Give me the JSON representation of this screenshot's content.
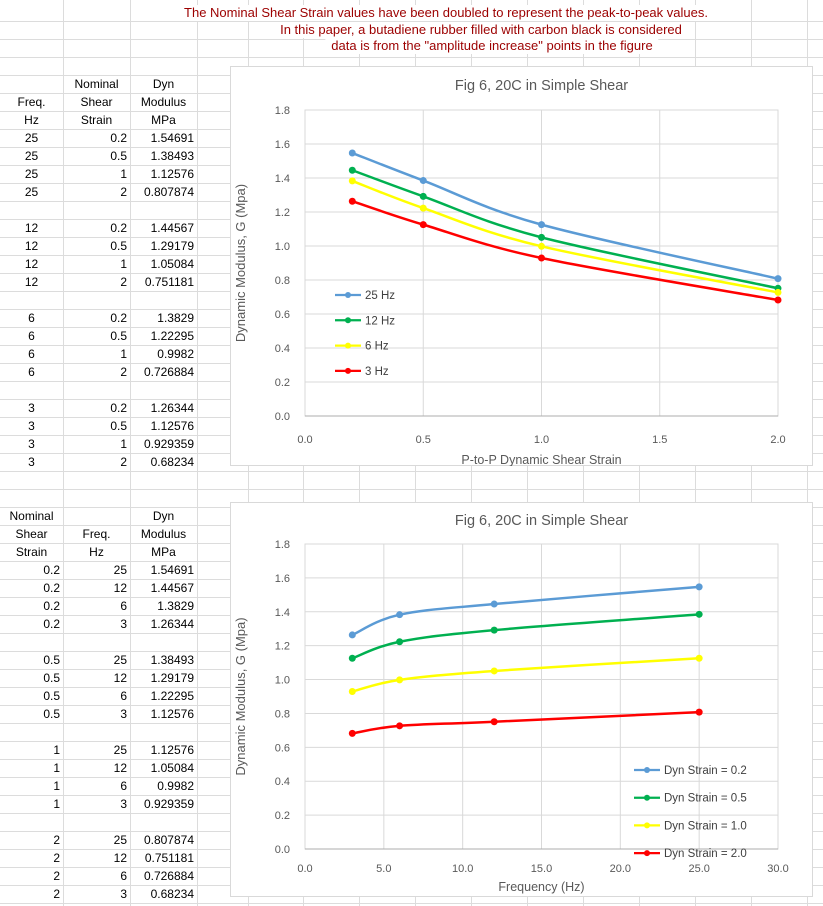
{
  "colors": {
    "note_text": "#9C0000",
    "sheet_gridline": "#DCDCDC",
    "chart_border": "#D9D9D9",
    "chart_gridline": "#D9D9D9",
    "axis_line": "#ADADAD",
    "chart_text": "#595959",
    "legend_text": "#404040",
    "series_blue": "#5B9BD5",
    "series_green": "#00B050",
    "series_yellow": "#FFFF00",
    "series_red": "#FF0000"
  },
  "notes": [
    "The Nominal Shear Strain values have been doubled to represent the peak-to-peak values.",
    "In this paper, a butadiene rubber filled with carbon black is considered",
    "data is from the \"amplitude increase\" points in the figure"
  ],
  "tables": {
    "table1": {
      "header_rows": [
        [
          "",
          "Nominal",
          "Dyn"
        ],
        [
          "Freq.",
          "Shear",
          "Modulus"
        ],
        [
          "Hz",
          "Strain",
          "MPa"
        ]
      ],
      "groups": [
        [
          [
            "25",
            "0.2",
            "1.54691"
          ],
          [
            "25",
            "0.5",
            "1.38493"
          ],
          [
            "25",
            "1",
            "1.12576"
          ],
          [
            "25",
            "2",
            "0.807874"
          ]
        ],
        [
          [
            "12",
            "0.2",
            "1.44567"
          ],
          [
            "12",
            "0.5",
            "1.29179"
          ],
          [
            "12",
            "1",
            "1.05084"
          ],
          [
            "12",
            "2",
            "0.751181"
          ]
        ],
        [
          [
            "6",
            "0.2",
            "1.3829"
          ],
          [
            "6",
            "0.5",
            "1.22295"
          ],
          [
            "6",
            "1",
            "0.9982"
          ],
          [
            "6",
            "2",
            "0.726884"
          ]
        ],
        [
          [
            "3",
            "0.2",
            "1.26344"
          ],
          [
            "3",
            "0.5",
            "1.12576"
          ],
          [
            "3",
            "1",
            "0.929359"
          ],
          [
            "3",
            "2",
            "0.68234"
          ]
        ]
      ]
    },
    "table2": {
      "header_rows": [
        [
          "Nominal",
          "",
          "Dyn"
        ],
        [
          "Shear",
          "Freq.",
          "Modulus"
        ],
        [
          "Strain",
          "Hz",
          "MPa"
        ]
      ],
      "groups": [
        [
          [
            "0.2",
            "25",
            "1.54691"
          ],
          [
            "0.2",
            "12",
            "1.44567"
          ],
          [
            "0.2",
            "6",
            "1.3829"
          ],
          [
            "0.2",
            "3",
            "1.26344"
          ]
        ],
        [
          [
            "0.5",
            "25",
            "1.38493"
          ],
          [
            "0.5",
            "12",
            "1.29179"
          ],
          [
            "0.5",
            "6",
            "1.22295"
          ],
          [
            "0.5",
            "3",
            "1.12576"
          ]
        ],
        [
          [
            "1",
            "25",
            "1.12576"
          ],
          [
            "1",
            "12",
            "1.05084"
          ],
          [
            "1",
            "6",
            "0.9982"
          ],
          [
            "1",
            "3",
            "0.929359"
          ]
        ],
        [
          [
            "2",
            "25",
            "0.807874"
          ],
          [
            "2",
            "12",
            "0.751181"
          ],
          [
            "2",
            "6",
            "0.726884"
          ],
          [
            "2",
            "3",
            "0.68234"
          ]
        ]
      ]
    }
  },
  "chart_data": [
    {
      "type": "line",
      "title": "Fig 6, 20C in Simple Shear",
      "xlabel": "P-to-P Dynamic Shear Strain",
      "ylabel": "Dynamic Modulus, G (Mpa)",
      "xlim": [
        0,
        2
      ],
      "ylim": [
        0,
        1.8
      ],
      "xticks": [
        "0.0",
        "0.5",
        "1.0",
        "1.5",
        "2.0"
      ],
      "yticks": [
        "0.0",
        "0.2",
        "0.4",
        "0.6",
        "0.8",
        "1.0",
        "1.2",
        "1.4",
        "1.6",
        "1.8"
      ],
      "grid": true,
      "legend_position": "inside-left",
      "x": [
        0.2,
        0.5,
        1,
        2
      ],
      "series": [
        {
          "name": "25 Hz",
          "color": "#5B9BD5",
          "values": [
            1.54691,
            1.38493,
            1.12576,
            0.807874
          ]
        },
        {
          "name": "12 Hz",
          "color": "#00B050",
          "values": [
            1.44567,
            1.29179,
            1.05084,
            0.751181
          ]
        },
        {
          "name": "6 Hz",
          "color": "#FFFF00",
          "values": [
            1.3829,
            1.22295,
            0.9982,
            0.726884
          ]
        },
        {
          "name": "3 Hz",
          "color": "#FF0000",
          "values": [
            1.26344,
            1.12576,
            0.929359,
            0.68234
          ]
        }
      ]
    },
    {
      "type": "line",
      "title": "Fig 6, 20C in Simple Shear",
      "xlabel": "Frequency (Hz)",
      "ylabel": "Dynamic Modulus, G (Mpa)",
      "xlim": [
        0,
        30
      ],
      "ylim": [
        0,
        1.8
      ],
      "xticks": [
        "0.0",
        "5.0",
        "10.0",
        "15.0",
        "20.0",
        "25.0",
        "30.0"
      ],
      "yticks": [
        "0.0",
        "0.2",
        "0.4",
        "0.6",
        "0.8",
        "1.0",
        "1.2",
        "1.4",
        "1.6",
        "1.8"
      ],
      "grid": true,
      "legend_position": "inside-bottom-right",
      "x": [
        3,
        6,
        12,
        25
      ],
      "series": [
        {
          "name": "Dyn Strain = 0.2",
          "color": "#5B9BD5",
          "values": [
            1.26344,
            1.3829,
            1.44567,
            1.54691
          ]
        },
        {
          "name": "Dyn Strain = 0.5",
          "color": "#00B050",
          "values": [
            1.12576,
            1.22295,
            1.29179,
            1.38493
          ]
        },
        {
          "name": "Dyn Strain = 1.0",
          "color": "#FFFF00",
          "values": [
            0.929359,
            0.9982,
            1.05084,
            1.12576
          ]
        },
        {
          "name": "Dyn Strain = 2.0",
          "color": "#FF0000",
          "values": [
            0.68234,
            0.726884,
            0.751181,
            0.807874
          ]
        }
      ]
    }
  ]
}
